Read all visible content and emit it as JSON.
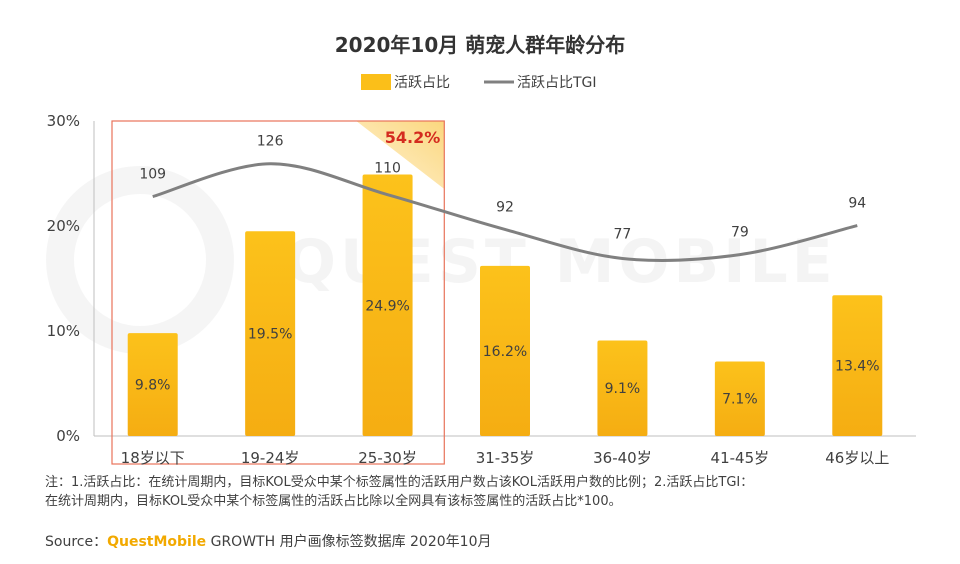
{
  "chart_data": {
    "type": "bar",
    "title": "2020年10月 萌宠人群年龄分布",
    "categories": [
      "18岁以下",
      "19-24岁",
      "25-30岁",
      "31-35岁",
      "36-40岁",
      "41-45岁",
      "46岁以上"
    ],
    "series": [
      {
        "name": "活跃占比",
        "type": "bar",
        "values": [
          9.8,
          19.5,
          24.9,
          16.2,
          9.1,
          7.1,
          13.4
        ],
        "labels": [
          "9.8%",
          "19.5%",
          "24.9%",
          "16.2%",
          "9.1%",
          "7.1%",
          "13.4%"
        ],
        "color": "#fbbf19"
      },
      {
        "name": "活跃占比TGI",
        "type": "line",
        "values": [
          109,
          126,
          110,
          92,
          77,
          79,
          94
        ],
        "labels": [
          "109",
          "126",
          "110",
          "92",
          "77",
          "79",
          "94"
        ],
        "color": "#808080"
      }
    ],
    "yticks": [
      "0%",
      "10%",
      "20%",
      "30%"
    ],
    "ylim": [
      0,
      30
    ],
    "highlight": {
      "categories": [
        "18岁以下",
        "19-24岁",
        "25-30岁"
      ],
      "label": "54.2%",
      "border_color": "#e8735a"
    },
    "grid": false,
    "legend_position": "top-center"
  },
  "watermark": "QUEST MOBILE",
  "footnote": {
    "line1": "注：1.活跃占比：在统计周期内，目标KOL受众中某个标签属性的活跃用户数占该KOL活跃用户数的比例；2.活跃占比TGI：",
    "line2": "在统计周期内，目标KOL受众中某个标签属性的活跃占比除以全网具有该标签属性的活跃占比*100。"
  },
  "source": {
    "prefix": "Source：",
    "brand": "QuestMobile",
    "suffix": "GROWTH 用户画像标签数据库 2020年10月"
  }
}
